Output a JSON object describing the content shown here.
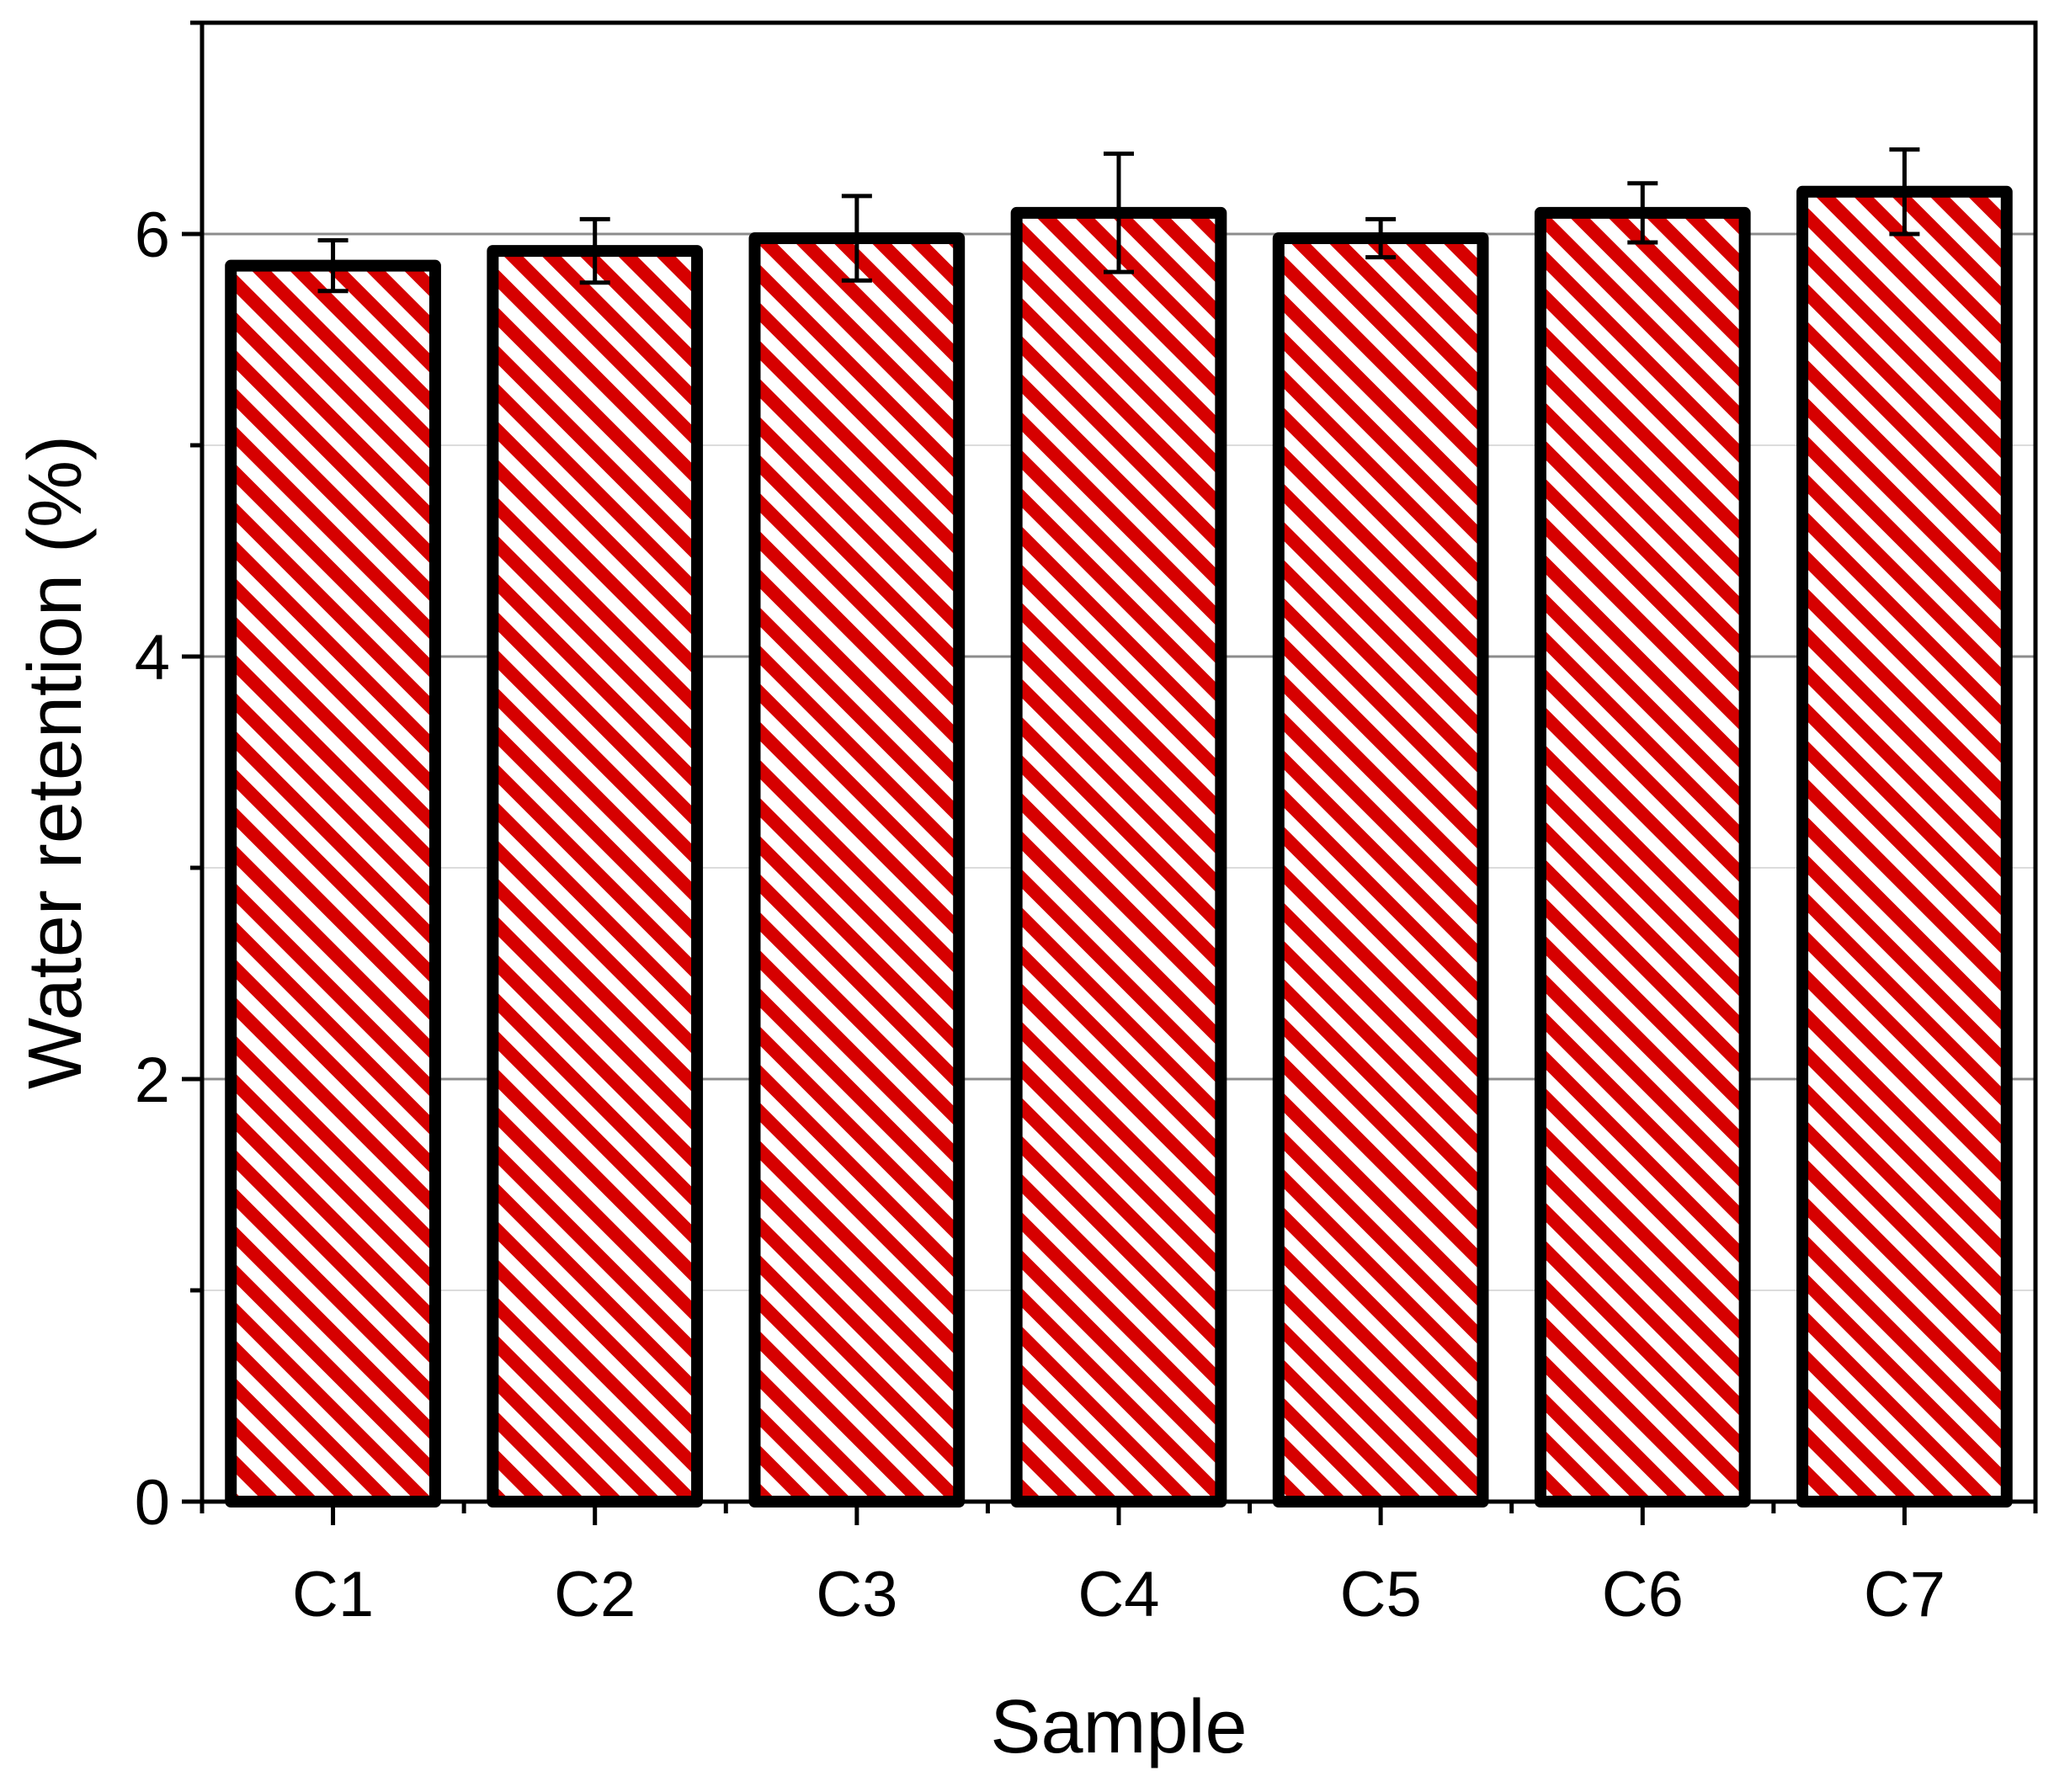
{
  "chart_data": {
    "type": "bar",
    "xlabel": "Sample",
    "ylabel": "Water retention (%)",
    "categories": [
      "C1",
      "C2",
      "C3",
      "C4",
      "C5",
      "C6",
      "C7"
    ],
    "values": [
      5.85,
      5.92,
      5.98,
      6.1,
      5.98,
      6.1,
      6.2
    ],
    "errors": [
      0.12,
      0.15,
      0.2,
      0.28,
      0.09,
      0.14,
      0.2
    ],
    "ylim": [
      0,
      7
    ],
    "yticks": [
      0,
      2,
      4,
      6
    ],
    "grid": true,
    "colors": {
      "hatch": "#d60000",
      "outline": "#000000",
      "grid": "#8c8c8c",
      "grid_minor": "#dcdcdc"
    }
  }
}
